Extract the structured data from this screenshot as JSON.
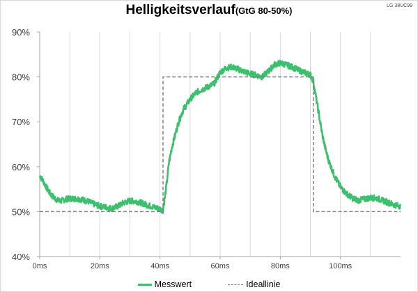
{
  "model": "LG 38UC99",
  "chart_data": {
    "type": "line",
    "title": "Helligkeitsverlauf",
    "subtitle": "(GtG 80-50%)",
    "x_ticks": [
      "0ms",
      "20ms",
      "40ms",
      "60ms",
      "80ms",
      "100ms"
    ],
    "x_tick_values": [
      0,
      20,
      40,
      60,
      80,
      100
    ],
    "xlim": [
      0,
      120
    ],
    "y_ticks": [
      "40%",
      "50%",
      "60%",
      "70%",
      "80%",
      "90%"
    ],
    "y_tick_values": [
      40,
      50,
      60,
      70,
      80,
      90
    ],
    "ylim": [
      40,
      90
    ],
    "grid": "vertical",
    "legend": "bottom",
    "series": [
      {
        "name": "Messwert",
        "color": "#3cc06e",
        "x": [
          0,
          1,
          2,
          3,
          4,
          5,
          6,
          7,
          8,
          9,
          10,
          12,
          14,
          16,
          18,
          20,
          22,
          24,
          26,
          28,
          30,
          32,
          34,
          36,
          38,
          40,
          41,
          42,
          43,
          44,
          45,
          46,
          47,
          48,
          50,
          52,
          54,
          56,
          58,
          60,
          62,
          64,
          66,
          68,
          70,
          72,
          74,
          76,
          78,
          80,
          82,
          84,
          86,
          88,
          90,
          91,
          92,
          93,
          94,
          95,
          96,
          98,
          100,
          102,
          104,
          106,
          108,
          110,
          112,
          114,
          116,
          118,
          120
        ],
        "values": [
          58,
          57,
          55.7,
          54.5,
          53.6,
          53,
          52.5,
          52.4,
          52.6,
          52.8,
          52.9,
          52.9,
          52.7,
          52.3,
          51.7,
          51.2,
          51,
          50.7,
          51.2,
          52,
          52.4,
          52.3,
          51.9,
          51.4,
          51,
          50.6,
          50.3,
          55,
          61,
          64.5,
          67,
          69.5,
          71.5,
          73,
          75,
          76.5,
          77.2,
          77.8,
          78.5,
          81,
          82,
          82.2,
          81.7,
          81.2,
          80.7,
          80.4,
          80,
          81.2,
          82.7,
          83.1,
          82.7,
          82.2,
          81.5,
          81,
          80.5,
          79,
          75,
          71,
          67,
          64,
          61.5,
          58,
          55.5,
          54,
          53,
          52.5,
          52.8,
          53.1,
          53,
          52.5,
          52,
          51.5,
          51.2
        ]
      },
      {
        "name": "Ideallinie",
        "color": "#808080",
        "dashed": true,
        "x": [
          0,
          41,
          41,
          91,
          91,
          120
        ],
        "values": [
          50,
          50,
          80,
          80,
          50,
          50
        ]
      }
    ]
  }
}
